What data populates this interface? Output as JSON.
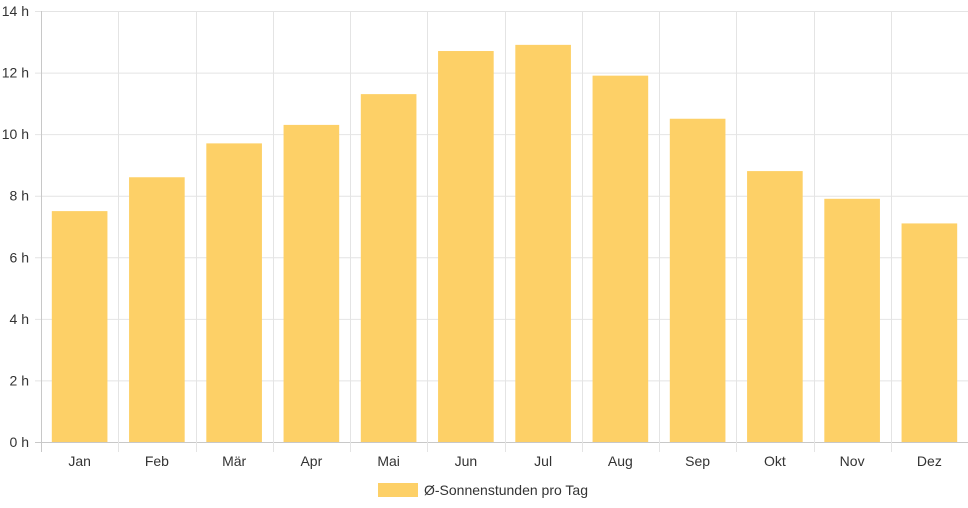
{
  "chart_data": {
    "type": "bar",
    "categories": [
      "Jan",
      "Feb",
      "Mär",
      "Apr",
      "Mai",
      "Jun",
      "Jul",
      "Aug",
      "Sep",
      "Okt",
      "Nov",
      "Dez"
    ],
    "series": [
      {
        "name": "Ø-Sonnenstunden pro Tag",
        "values": [
          7.5,
          8.6,
          9.7,
          10.3,
          11.3,
          12.7,
          12.9,
          11.9,
          10.5,
          8.8,
          7.9,
          7.1
        ],
        "color": "#fdd067"
      }
    ],
    "y_ticks": [
      "0 h",
      "2 h",
      "4 h",
      "6 h",
      "8 h",
      "10 h",
      "12 h",
      "14 h"
    ],
    "ylim": [
      0,
      14
    ],
    "grid": true,
    "legend_position": "bottom"
  },
  "legend": {
    "label": "Ø-Sonnenstunden pro Tag"
  }
}
